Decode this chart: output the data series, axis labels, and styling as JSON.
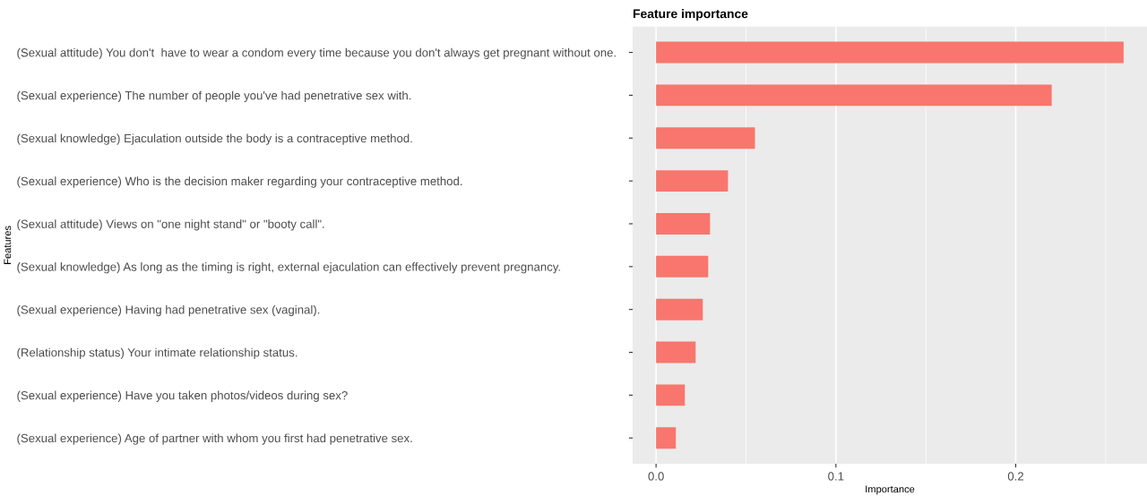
{
  "chart_data": {
    "type": "bar",
    "orientation": "horizontal",
    "title": "Feature importance",
    "xlabel": "Importance",
    "ylabel": "Features",
    "categories": [
      "(Sexual attitude) You don't  have to wear a condom every time because you don't always get pregnant without one.",
      "(Sexual experience) The number of people you've had penetrative sex with.",
      "(Sexual knowledge) Ejaculation outside the body is a contraceptive method.",
      "(Sexual experience) Who is the decision maker regarding your contraceptive method.",
      "(Sexual attitude) Views on \"one night stand\" or \"booty call\".",
      "(Sexual knowledge) As long as the timing is right, external ejaculation can effectively prevent pregnancy.",
      "(Sexual experience) Having had penetrative sex (vaginal).",
      "(Relationship status) Your intimate relationship status.",
      "(Sexual experience) Have you taken photos/videos during sex?",
      "(Sexual experience) Age of partner with whom you first had penetrative sex."
    ],
    "values": [
      0.26,
      0.22,
      0.055,
      0.04,
      0.03,
      0.029,
      0.026,
      0.022,
      0.016,
      0.011
    ],
    "color": "#f8766d",
    "xlim": [
      -0.013,
      0.273
    ],
    "xticks": [
      {
        "value": 0.0,
        "label": "0.0"
      },
      {
        "value": 0.05,
        "label": null
      },
      {
        "value": 0.1,
        "label": "0.1"
      },
      {
        "value": 0.15,
        "label": null
      },
      {
        "value": 0.2,
        "label": "0.2"
      },
      {
        "value": 0.25,
        "label": null
      }
    ],
    "grid": "x"
  }
}
